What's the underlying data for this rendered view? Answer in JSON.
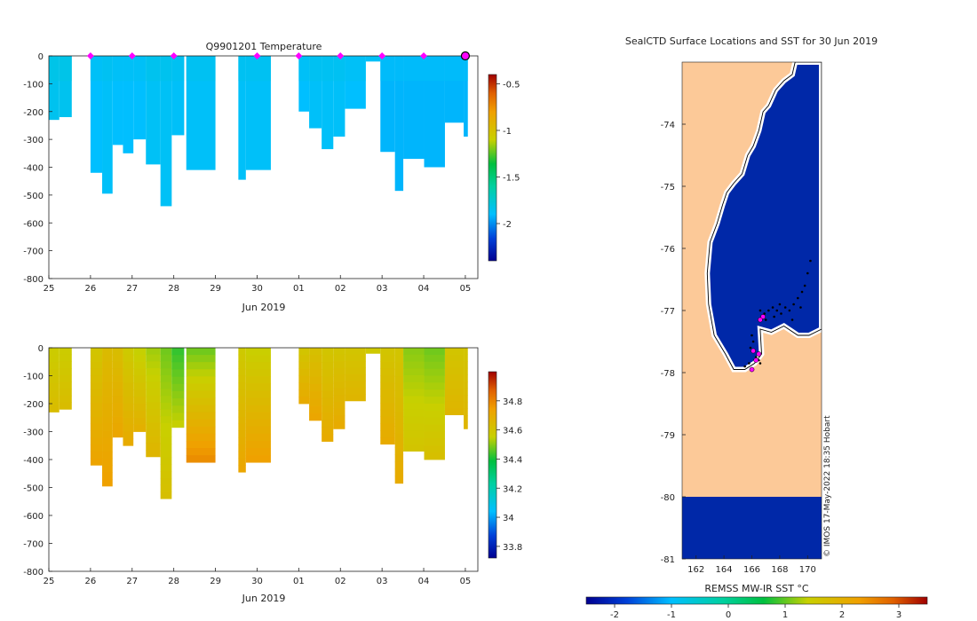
{
  "chart_data": [
    {
      "type": "heatmap",
      "id": "temperature",
      "title": "Q9901201  Temperature",
      "xlabel": "Jun 2019",
      "x_ticks": [
        "25",
        "26",
        "27",
        "28",
        "29",
        "30",
        "01",
        "02",
        "03",
        "04",
        "05"
      ],
      "ylim": [
        -800,
        0
      ],
      "y_ticks": [
        "0",
        "-100",
        "-200",
        "-300",
        "-400",
        "-500",
        "-600",
        "-700",
        "-800"
      ],
      "colorbar": {
        "min": -2.4,
        "max": -0.4,
        "ticks": [
          "-0.5",
          "-1",
          "-1.5",
          "-2"
        ],
        "tick_values": [
          -0.5,
          -1,
          -1.5,
          -2
        ]
      },
      "surface_markers_day": [
        26,
        27,
        28,
        30,
        31,
        32,
        33,
        34
      ],
      "last_marker_day": 35,
      "profiles": [
        {
          "t": 25.0,
          "w": 0.25,
          "depth": 230,
          "value": -1.85
        },
        {
          "t": 25.25,
          "w": 0.3,
          "depth": 220,
          "value": -1.85
        },
        {
          "t": 26.0,
          "w": 0.28,
          "depth": 420,
          "value": -1.9
        },
        {
          "t": 26.28,
          "w": 0.25,
          "depth": 495,
          "value": -1.88
        },
        {
          "t": 26.53,
          "w": 0.25,
          "depth": 320,
          "value": -1.9
        },
        {
          "t": 26.78,
          "w": 0.25,
          "depth": 350,
          "value": -1.9
        },
        {
          "t": 27.03,
          "w": 0.3,
          "depth": 300,
          "value": -1.9
        },
        {
          "t": 27.33,
          "w": 0.35,
          "depth": 390,
          "value": -1.87
        },
        {
          "t": 27.68,
          "w": 0.27,
          "depth": 540,
          "value": -1.87
        },
        {
          "t": 27.95,
          "w": 0.3,
          "depth": 285,
          "value": -1.88
        },
        {
          "t": 28.3,
          "w": 0.7,
          "depth": 410,
          "value": -1.88
        },
        {
          "t": 29.55,
          "w": 0.18,
          "depth": 445,
          "value": -1.88
        },
        {
          "t": 29.73,
          "w": 0.6,
          "depth": 410,
          "value": -1.88
        },
        {
          "t": 31.0,
          "w": 0.25,
          "depth": 200,
          "value": -1.9
        },
        {
          "t": 31.25,
          "w": 0.3,
          "depth": 260,
          "value": -1.88
        },
        {
          "t": 31.55,
          "w": 0.28,
          "depth": 335,
          "value": -1.88
        },
        {
          "t": 31.83,
          "w": 0.28,
          "depth": 290,
          "value": -1.88
        },
        {
          "t": 32.11,
          "w": 0.5,
          "depth": 190,
          "value": -1.9
        },
        {
          "t": 32.61,
          "w": 0.35,
          "depth": 20,
          "value": -1.9
        },
        {
          "t": 32.96,
          "w": 0.35,
          "depth": 345,
          "value": -1.92
        },
        {
          "t": 33.31,
          "w": 0.2,
          "depth": 485,
          "value": -1.92
        },
        {
          "t": 33.51,
          "w": 0.5,
          "depth": 370,
          "value": -1.92
        },
        {
          "t": 34.01,
          "w": 0.5,
          "depth": 400,
          "value": -1.92
        },
        {
          "t": 34.51,
          "w": 0.45,
          "depth": 240,
          "value": -1.92
        },
        {
          "t": 34.96,
          "w": 0.1,
          "depth": 290,
          "value": -1.92
        }
      ]
    },
    {
      "type": "heatmap",
      "id": "salinity",
      "title": "",
      "xlabel": "Jun 2019",
      "x_ticks": [
        "25",
        "26",
        "27",
        "28",
        "29",
        "30",
        "01",
        "02",
        "03",
        "04",
        "05"
      ],
      "ylim": [
        -800,
        0
      ],
      "y_ticks": [
        "0",
        "-100",
        "-200",
        "-300",
        "-400",
        "-500",
        "-600",
        "-700",
        "-800"
      ],
      "colorbar": {
        "min": 33.72,
        "max": 35.0,
        "ticks": [
          "34.8",
          "34.6",
          "34.4",
          "34.2",
          "34",
          "33.8"
        ],
        "tick_values": [
          34.8,
          34.6,
          34.4,
          34.2,
          34.0,
          33.8
        ]
      },
      "profiles": [
        {
          "t": 25.0,
          "w": 0.25,
          "depth": 230,
          "top": 34.57,
          "bottom": 34.63
        },
        {
          "t": 25.25,
          "w": 0.3,
          "depth": 220,
          "top": 34.57,
          "bottom": 34.63
        },
        {
          "t": 26.0,
          "w": 0.28,
          "depth": 420,
          "top": 34.6,
          "bottom": 34.73
        },
        {
          "t": 26.28,
          "w": 0.25,
          "depth": 495,
          "top": 34.64,
          "bottom": 34.74
        },
        {
          "t": 26.53,
          "w": 0.25,
          "depth": 320,
          "top": 34.63,
          "bottom": 34.72
        },
        {
          "t": 26.78,
          "w": 0.25,
          "depth": 350,
          "top": 34.58,
          "bottom": 34.7
        },
        {
          "t": 27.03,
          "w": 0.3,
          "depth": 300,
          "top": 34.55,
          "bottom": 34.68
        },
        {
          "t": 27.33,
          "w": 0.35,
          "depth": 390,
          "top": 34.52,
          "bottom": 34.66
        },
        {
          "t": 27.68,
          "w": 0.27,
          "depth": 540,
          "top": 34.48,
          "bottom": 34.62
        },
        {
          "t": 27.95,
          "w": 0.3,
          "depth": 285,
          "top": 34.43,
          "bottom": 34.55
        },
        {
          "t": 28.3,
          "w": 0.7,
          "depth": 410,
          "top": 34.48,
          "bottom": 34.78
        },
        {
          "t": 29.55,
          "w": 0.18,
          "depth": 445,
          "top": 34.58,
          "bottom": 34.72
        },
        {
          "t": 29.73,
          "w": 0.6,
          "depth": 410,
          "top": 34.56,
          "bottom": 34.74
        },
        {
          "t": 31.0,
          "w": 0.25,
          "depth": 200,
          "top": 34.6,
          "bottom": 34.7
        },
        {
          "t": 31.25,
          "w": 0.3,
          "depth": 260,
          "top": 34.62,
          "bottom": 34.72
        },
        {
          "t": 31.55,
          "w": 0.28,
          "depth": 335,
          "top": 34.6,
          "bottom": 34.7
        },
        {
          "t": 31.83,
          "w": 0.28,
          "depth": 290,
          "top": 34.6,
          "bottom": 34.7
        },
        {
          "t": 32.11,
          "w": 0.5,
          "depth": 190,
          "top": 34.6,
          "bottom": 34.66
        },
        {
          "t": 32.61,
          "w": 0.35,
          "depth": 20,
          "top": 34.58,
          "bottom": 34.58
        },
        {
          "t": 32.96,
          "w": 0.35,
          "depth": 345,
          "top": 34.6,
          "bottom": 34.7
        },
        {
          "t": 33.31,
          "w": 0.2,
          "depth": 485,
          "top": 34.6,
          "bottom": 34.7
        },
        {
          "t": 33.51,
          "w": 0.5,
          "depth": 370,
          "top": 34.5,
          "bottom": 34.6
        },
        {
          "t": 34.01,
          "w": 0.5,
          "depth": 400,
          "top": 34.48,
          "bottom": 34.62
        },
        {
          "t": 34.51,
          "w": 0.45,
          "depth": 240,
          "top": 34.6,
          "bottom": 34.66
        },
        {
          "t": 34.96,
          "w": 0.1,
          "depth": 290,
          "top": 34.6,
          "bottom": 34.66
        }
      ]
    },
    {
      "type": "heatmap",
      "id": "sst_map",
      "title": "SealCTD Surface Locations and SST for 30 Jun 2019",
      "lon_range": [
        161.0,
        171.0
      ],
      "lat_range": [
        -81.0,
        -73.0
      ],
      "x_ticks": [
        162,
        164,
        166,
        168,
        170
      ],
      "x_tick_labels": [
        "162",
        "164",
        "166",
        "168",
        "170"
      ],
      "y_ticks": [
        -74,
        -75,
        -76,
        -77,
        -78,
        -79,
        -80,
        -81
      ],
      "y_tick_labels": [
        "-74",
        "-75",
        "-76",
        "-77",
        "-78",
        "-79",
        "-80",
        "-81"
      ],
      "land_color": "#fcc998",
      "sea_color": "#0028a8",
      "sst_value": -1.9,
      "coast_lonlat": [
        [
          169.1,
          -73.0
        ],
        [
          168.9,
          -73.2
        ],
        [
          168.3,
          -73.3
        ],
        [
          167.7,
          -73.45
        ],
        [
          167.2,
          -73.7
        ],
        [
          166.8,
          -73.8
        ],
        [
          166.5,
          -74.1
        ],
        [
          166.1,
          -74.35
        ],
        [
          165.7,
          -74.5
        ],
        [
          165.3,
          -74.8
        ],
        [
          164.7,
          -74.95
        ],
        [
          164.2,
          -75.1
        ],
        [
          163.9,
          -75.3
        ],
        [
          163.5,
          -75.6
        ],
        [
          163.0,
          -75.9
        ],
        [
          162.8,
          -76.4
        ],
        [
          162.9,
          -76.9
        ],
        [
          163.3,
          -77.4
        ],
        [
          164.1,
          -77.7
        ],
        [
          164.7,
          -77.95
        ],
        [
          165.5,
          -77.95
        ],
        [
          166.2,
          -77.85
        ],
        [
          166.7,
          -77.7
        ],
        [
          166.6,
          -77.3
        ],
        [
          167.4,
          -77.35
        ],
        [
          168.3,
          -77.25
        ],
        [
          169.3,
          -77.4
        ],
        [
          170.1,
          -77.4
        ],
        [
          171.0,
          -77.3
        ],
        [
          171.0,
          -73.0
        ]
      ],
      "ice_shelf_lat": -80.0,
      "track_points_lonlat": [
        [
          166.6,
          -77.0
        ],
        [
          166.9,
          -77.05
        ],
        [
          167.2,
          -77.0
        ],
        [
          167.5,
          -76.95
        ],
        [
          167.8,
          -77.0
        ],
        [
          168.1,
          -77.05
        ],
        [
          168.4,
          -76.95
        ],
        [
          168.7,
          -77.0
        ],
        [
          169.0,
          -76.9
        ],
        [
          169.3,
          -76.8
        ],
        [
          169.6,
          -76.7
        ],
        [
          169.8,
          -76.6
        ],
        [
          170.0,
          -76.4
        ],
        [
          170.2,
          -76.2
        ],
        [
          166.0,
          -77.4
        ],
        [
          166.1,
          -77.5
        ],
        [
          165.9,
          -77.6
        ],
        [
          166.2,
          -77.65
        ],
        [
          166.3,
          -77.75
        ],
        [
          165.8,
          -77.85
        ],
        [
          165.5,
          -77.9
        ],
        [
          166.5,
          -77.8
        ],
        [
          166.6,
          -77.85
        ],
        [
          167.0,
          -77.15
        ],
        [
          167.6,
          -77.1
        ],
        [
          168.0,
          -76.9
        ],
        [
          168.9,
          -77.15
        ],
        [
          169.5,
          -76.95
        ]
      ],
      "position_markers_lonlat": [
        [
          166.1,
          -77.65
        ],
        [
          166.5,
          -77.7
        ],
        [
          166.3,
          -77.8
        ],
        [
          166.0,
          -77.95
        ],
        [
          166.8,
          -77.1
        ],
        [
          166.6,
          -77.15
        ]
      ],
      "credit": "© IMOS 17-May-2022 18:35 Hobart",
      "colorbar": {
        "label": "REMSS MW-IR SST °C",
        "min": -2.5,
        "max": 3.5,
        "ticks": [
          "-2",
          "-1",
          "0",
          "1",
          "2",
          "3"
        ],
        "tick_values": [
          -2,
          -1,
          0,
          1,
          2,
          3
        ]
      }
    }
  ]
}
